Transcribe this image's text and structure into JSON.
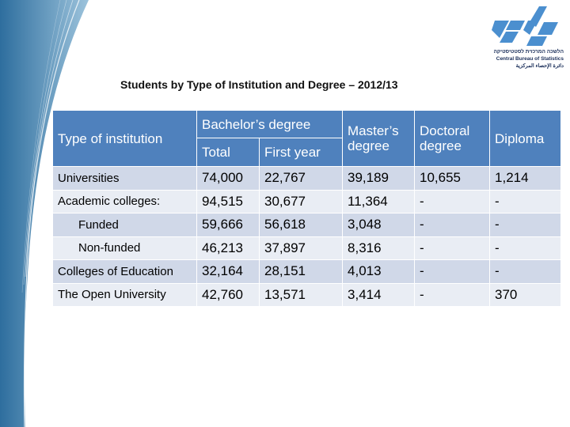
{
  "title": "Students by Type of Institution and Degree – 2012/13",
  "logo": {
    "hebrew": "הלשכה המרכזית לסטטיסטיקה",
    "english": "Central Bureau of Statistics",
    "arabic": "دائرة الإحصاء المركزية"
  },
  "table": {
    "headers": {
      "type": "Type of institution",
      "bachelor": "Bachelor’s degree",
      "total": "Total",
      "first_year": "First year",
      "masters": "Master’s degree",
      "doctoral": "Doctoral degree",
      "diploma": "Diploma"
    },
    "rows": [
      {
        "name": "Universities",
        "total": "74,000",
        "first_year": "22,767",
        "masters": "39,189",
        "doctoral": "10,655",
        "diploma": "1,214"
      },
      {
        "name": "Academic colleges:",
        "total": "94,515",
        "first_year": "30,677",
        "masters": "11,364",
        "doctoral": "-",
        "diploma": "-"
      },
      {
        "name": "Funded",
        "total": "59,666",
        "first_year": "56,618",
        "masters": "3,048",
        "doctoral": "-",
        "diploma": "-"
      },
      {
        "name": "Non-funded",
        "total": "46,213",
        "first_year": "37,897",
        "masters": "8,316",
        "doctoral": "-",
        "diploma": "-"
      },
      {
        "name": "Colleges of Education",
        "total": "32,164",
        "first_year": "28,151",
        "masters": "4,013",
        "doctoral": "-",
        "diploma": "-"
      },
      {
        "name": "The Open University",
        "total": "42,760",
        "first_year": "13,571",
        "masters": "3,414",
        "doctoral": "-",
        "diploma": "370"
      }
    ]
  }
}
